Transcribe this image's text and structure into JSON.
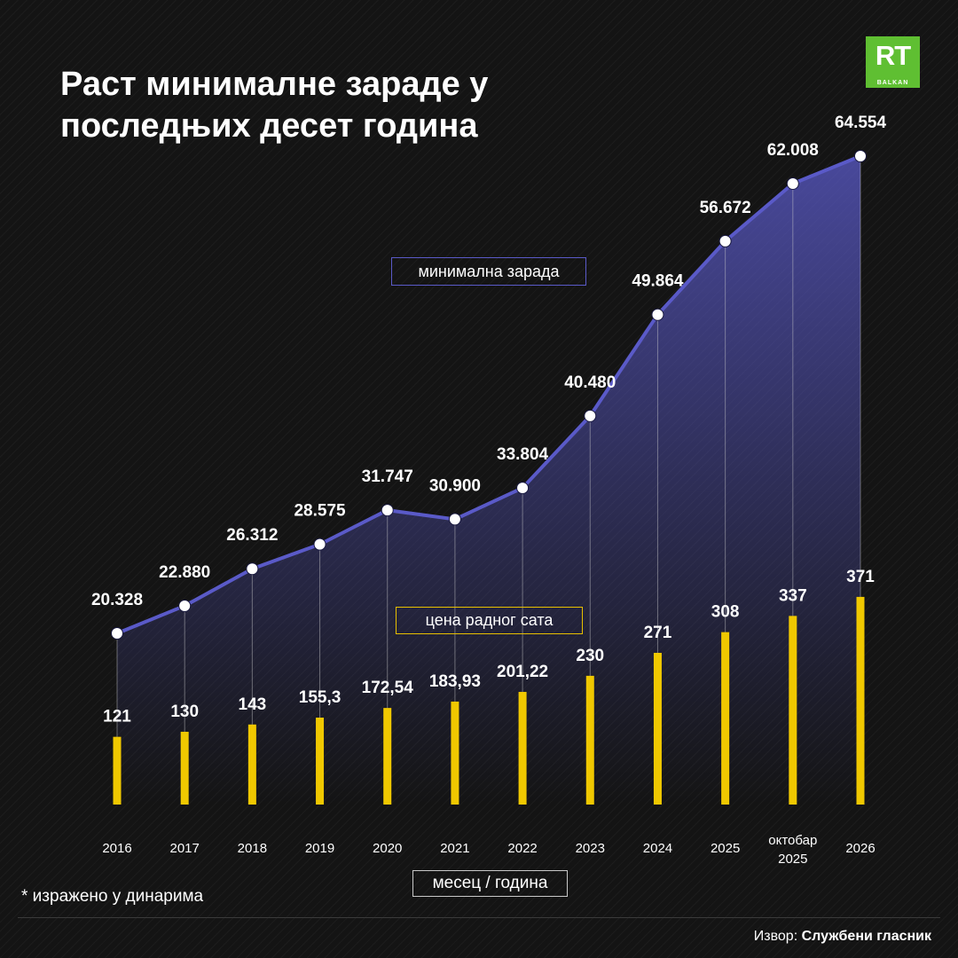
{
  "header": {
    "title": "Раст минималне зараде у последњих десет година"
  },
  "logo": {
    "name": "RT",
    "subtitle": "BALKAN",
    "color": "#5fbf32"
  },
  "legend": {
    "wage_label": "минимална зарада",
    "hour_label": "цена радног сата"
  },
  "footer": {
    "note": "* изражено у динарима",
    "source_prefix": "Извор: ",
    "source_name": "Службени гласник",
    "xaxis_label": "месец / година"
  },
  "chart_data": {
    "type": "line+bar",
    "categories": [
      "2016",
      "2017",
      "2018",
      "2019",
      "2020",
      "2021",
      "2022",
      "2023",
      "2024",
      "2025",
      "октобар 2025",
      "2026"
    ],
    "category_lines": [
      [
        "2016"
      ],
      [
        "2017"
      ],
      [
        "2018"
      ],
      [
        "2019"
      ],
      [
        "2020"
      ],
      [
        "2021"
      ],
      [
        "2022"
      ],
      [
        "2023"
      ],
      [
        "2024"
      ],
      [
        "2025"
      ],
      [
        "октобар",
        "2025"
      ],
      [
        "2026"
      ]
    ],
    "xlabel": "месец / година",
    "series": [
      {
        "name": "минимална зарада",
        "type": "line",
        "values": [
          20328,
          22880,
          26312,
          28575,
          31747,
          30900,
          33804,
          40480,
          49864,
          56672,
          62008,
          64554
        ],
        "labels": [
          "20.328",
          "22.880",
          "26.312",
          "28.575",
          "31.747",
          "30.900",
          "33.804",
          "40.480",
          "49.864",
          "56.672",
          "62.008",
          "64.554"
        ],
        "color": "#5a5ac8"
      },
      {
        "name": "цена радног сата",
        "type": "bar",
        "values": [
          121,
          130,
          143,
          155.3,
          172.54,
          183.93,
          201.22,
          230,
          271,
          308,
          337,
          371
        ],
        "labels": [
          "121",
          "130",
          "143",
          "155,3",
          "172,54",
          "183,93",
          "201,22",
          "230",
          "271",
          "308",
          "337",
          "371"
        ],
        "color": "#f0c800"
      }
    ]
  }
}
